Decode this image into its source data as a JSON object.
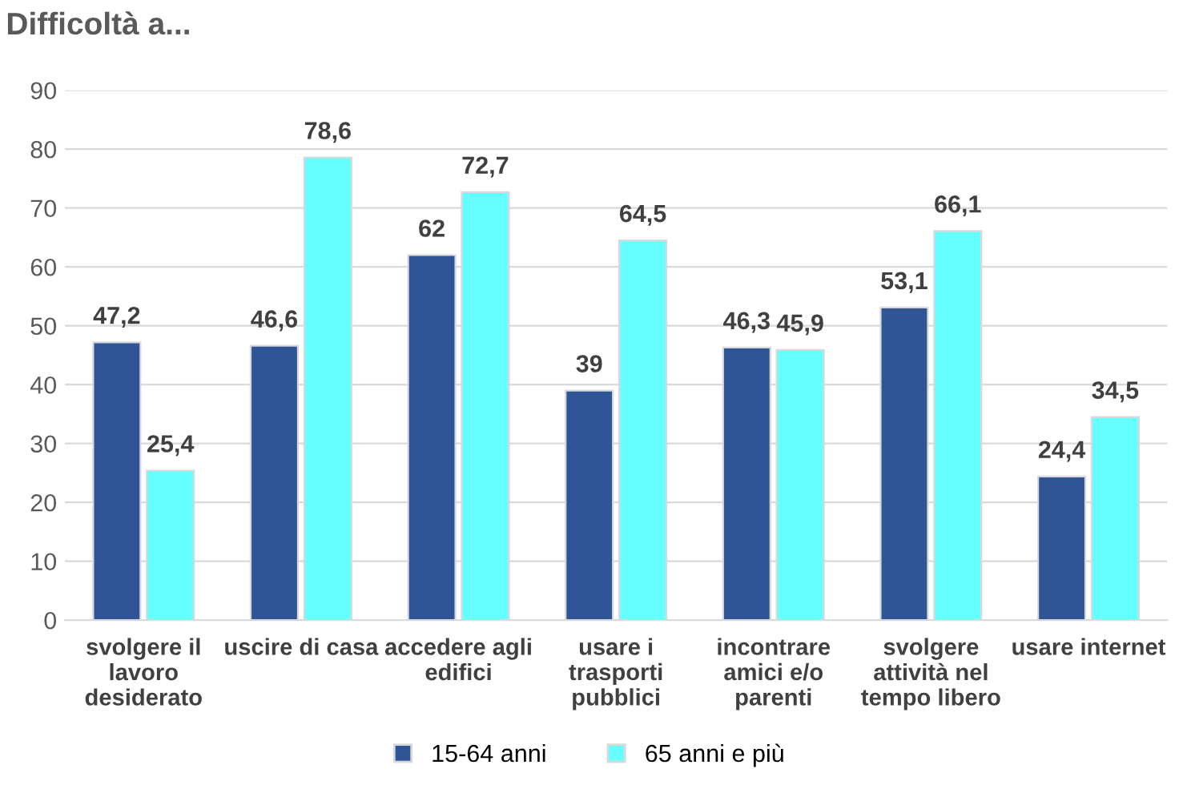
{
  "chart_data": {
    "type": "bar",
    "title": "Difficoltà a...",
    "categories": [
      "svolgere il\nlavoro\ndesiderato",
      "uscire di casa",
      "accedere agli\nedifici",
      "usare i\ntrasporti\npubblici",
      "incontrare\namici e/o\nparenti",
      "svolgere\nattività nel\ntempo libero",
      "usare internet"
    ],
    "series": [
      {
        "name": "15-64 anni",
        "color": "#2f5597",
        "values": [
          47.2,
          46.6,
          62,
          39,
          46.3,
          53.1,
          24.4
        ],
        "value_labels": [
          "47,2",
          "46,6",
          "62",
          "39",
          "46,3",
          "53,1",
          "24,4"
        ]
      },
      {
        "name": "65 anni e più",
        "color": "#66ffff",
        "values": [
          25.4,
          78.6,
          72.7,
          64.5,
          45.9,
          66.1,
          34.5
        ],
        "value_labels": [
          "25,4",
          "78,6",
          "72,7",
          "64,5",
          "45,9",
          "66,1",
          "34,5"
        ]
      }
    ],
    "ylim": [
      0,
      90
    ],
    "yticks": [
      0,
      10,
      20,
      30,
      40,
      50,
      60,
      70,
      80,
      90
    ],
    "grid": "y",
    "legend": "bottom"
  }
}
